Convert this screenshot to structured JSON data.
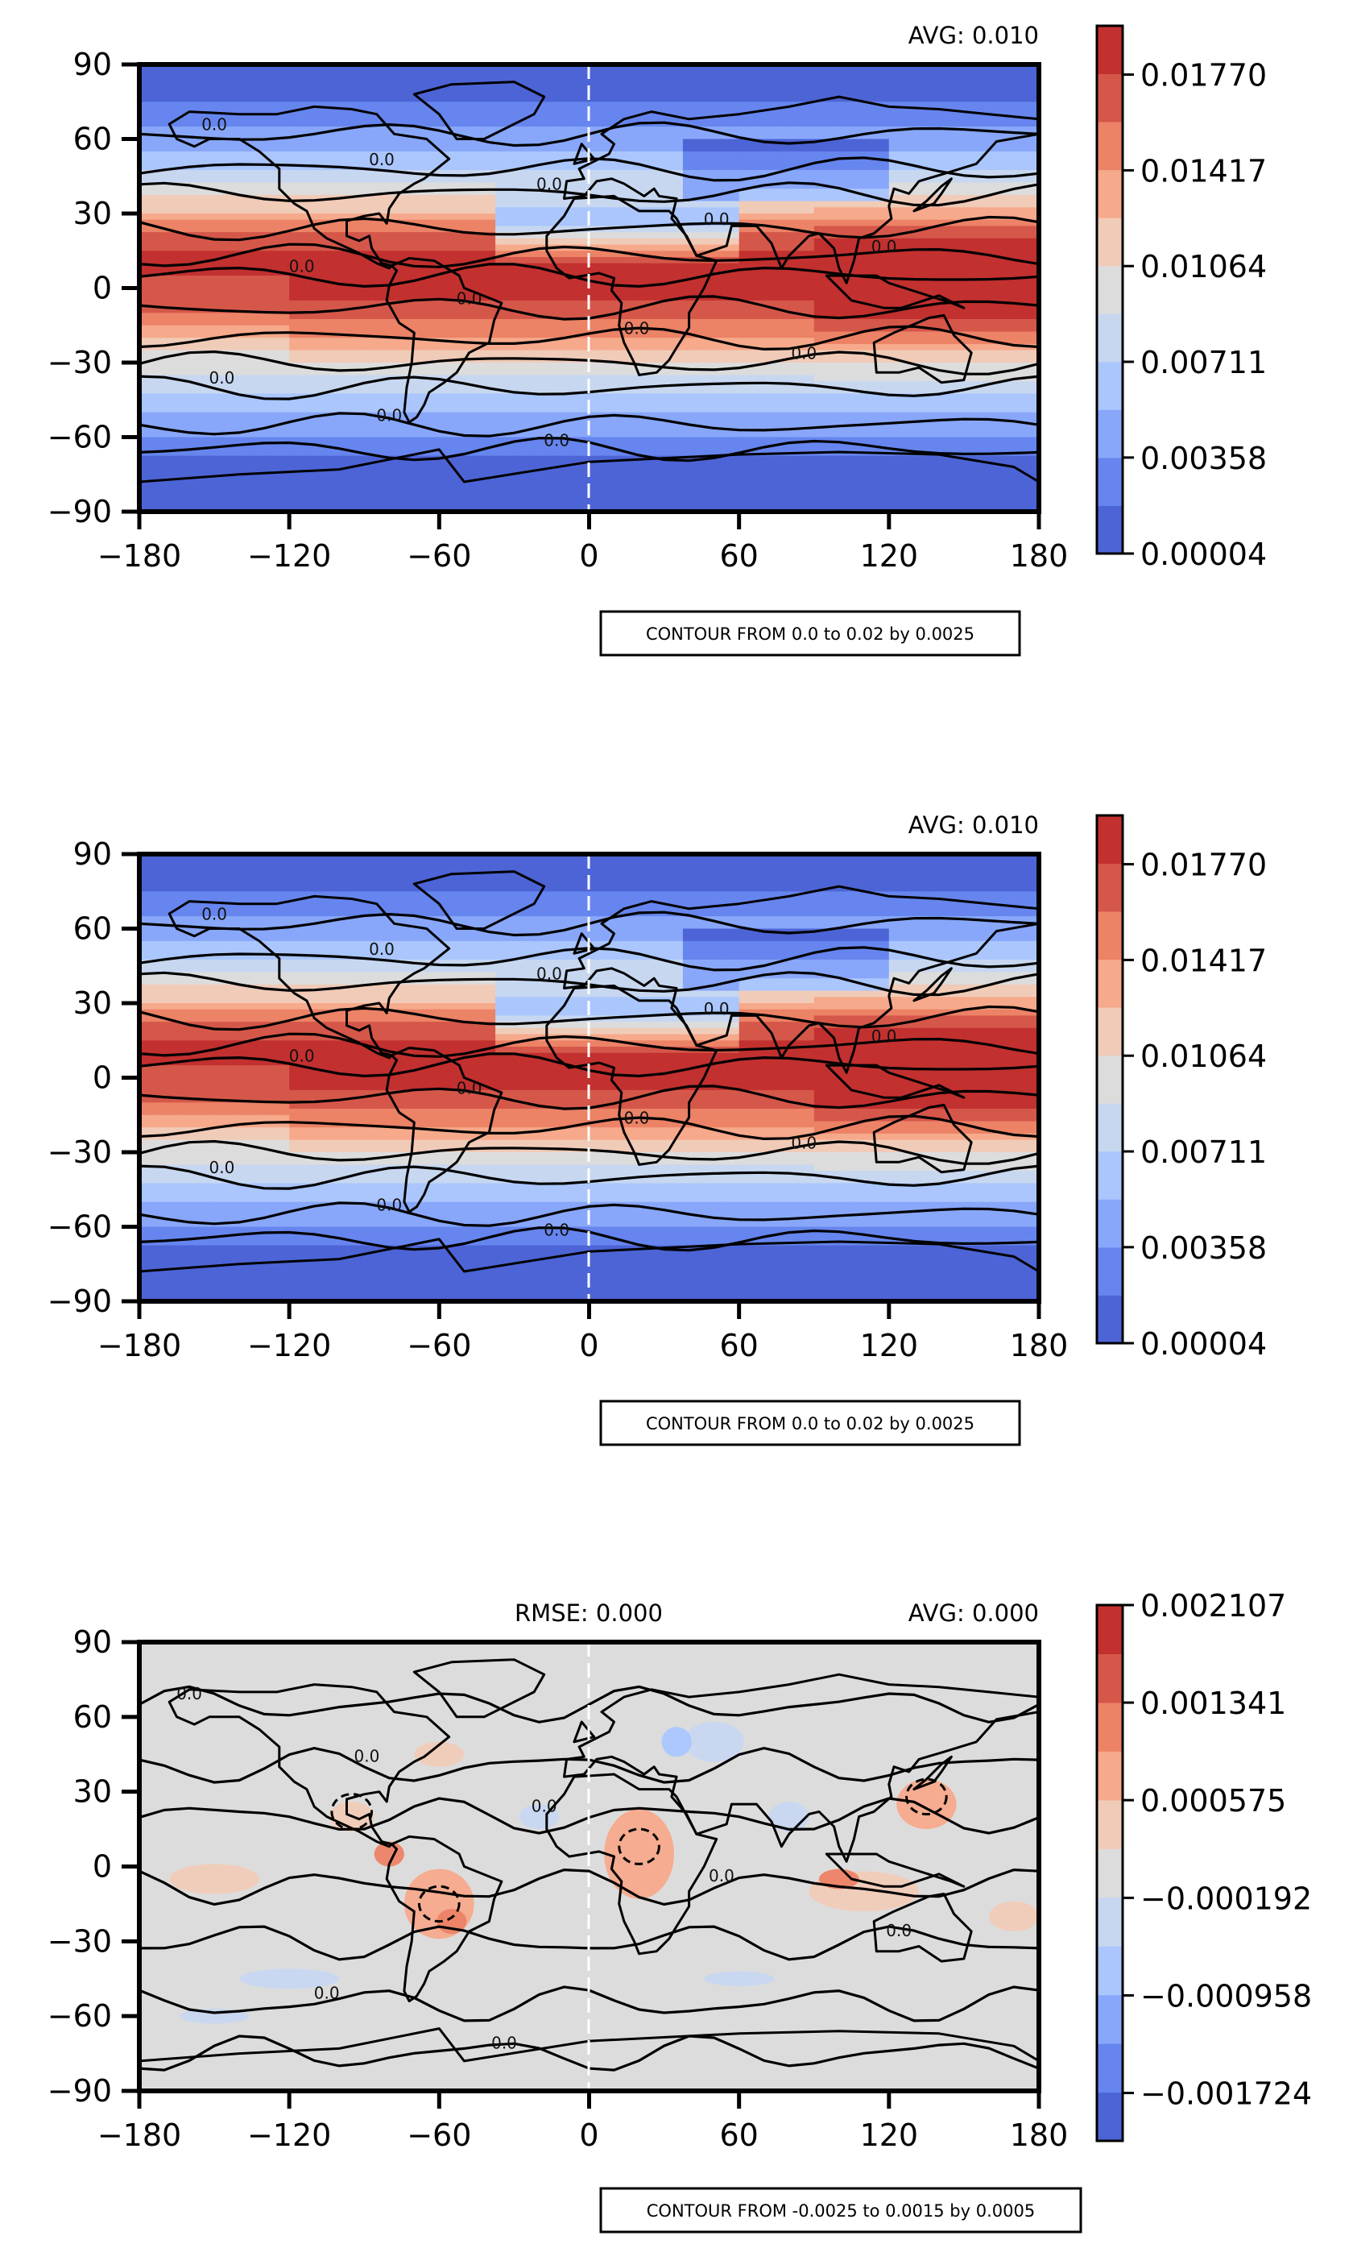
{
  "colors": {
    "cmap": [
      "#4d64d6",
      "#6685ee",
      "#88a7fa",
      "#aac6fd",
      "#c7d7f0",
      "#dddcdc",
      "#f0cbb8",
      "#f6a98b",
      "#ec8266",
      "#d5574a",
      "#c2302f"
    ],
    "contour_line": "#000000",
    "coastline": "#000000",
    "frame": "#000000"
  },
  "chart_data": [
    {
      "type": "heatmap",
      "variant": "filled-contour-world-map",
      "title": "",
      "subtitle_right": "AVG: 0.010",
      "subtitle_left": "",
      "xlim": [
        -180,
        180
      ],
      "ylim": [
        -90,
        90
      ],
      "xticks": [
        "−180",
        "−120",
        "−60",
        "0",
        "60",
        "120",
        "180"
      ],
      "yticks": [
        "90",
        "60",
        "30",
        "0",
        "−30",
        "−60",
        "−90"
      ],
      "colorbar": {
        "range": [
          4e-05,
          0.0195
        ],
        "tick_labels": [
          "0.00004",
          "0.00358",
          "0.00711",
          "0.01064",
          "0.01417",
          "0.01770"
        ],
        "levels": 11
      },
      "contour_note": "CONTOUR FROM 0.0 to 0.02 by 0.0025",
      "contour_label": "0.0",
      "zonal_profile": {
        "lat": [
          90,
          75,
          60,
          50,
          40,
          30,
          20,
          10,
          0,
          -10,
          -20,
          -30,
          -40,
          -50,
          -60,
          -70,
          -80,
          -90
        ],
        "value": [
          0.0004,
          0.0018,
          0.0045,
          0.0066,
          0.0094,
          0.0128,
          0.0168,
          0.0185,
          0.0186,
          0.017,
          0.0138,
          0.0104,
          0.0076,
          0.0054,
          0.0035,
          0.0014,
          0.0004,
          0.0002
        ]
      }
    },
    {
      "type": "heatmap",
      "variant": "filled-contour-world-map",
      "title": "",
      "subtitle_right": "AVG: 0.010",
      "subtitle_left": "",
      "xlim": [
        -180,
        180
      ],
      "ylim": [
        -90,
        90
      ],
      "xticks": [
        "−180",
        "−120",
        "−60",
        "0",
        "60",
        "120",
        "180"
      ],
      "yticks": [
        "90",
        "60",
        "30",
        "0",
        "−30",
        "−60",
        "−90"
      ],
      "colorbar": {
        "range": [
          4e-05,
          0.0195
        ],
        "tick_labels": [
          "0.00004",
          "0.00358",
          "0.00711",
          "0.01064",
          "0.01417",
          "0.01770"
        ],
        "levels": 11
      },
      "contour_note": "CONTOUR FROM 0.0 to 0.02 by 0.0025",
      "contour_label": "0.0",
      "zonal_profile": {
        "lat": [
          90,
          75,
          60,
          50,
          40,
          30,
          20,
          10,
          0,
          -10,
          -20,
          -30,
          -40,
          -50,
          -60,
          -70,
          -80,
          -90
        ],
        "value": [
          0.0004,
          0.0018,
          0.0045,
          0.0066,
          0.0094,
          0.0128,
          0.0168,
          0.0185,
          0.0186,
          0.017,
          0.0138,
          0.0104,
          0.0076,
          0.0054,
          0.0035,
          0.0014,
          0.0004,
          0.0002
        ]
      }
    },
    {
      "type": "heatmap",
      "variant": "filled-contour-world-map-difference",
      "title": "",
      "subtitle_right": "AVG: 0.000",
      "subtitle_left": "RMSE: 0.000",
      "xlim": [
        -180,
        180
      ],
      "ylim": [
        -90,
        90
      ],
      "xticks": [
        "−180",
        "−120",
        "−60",
        "0",
        "60",
        "120",
        "180"
      ],
      "yticks": [
        "90",
        "60",
        "30",
        "0",
        "−30",
        "−60",
        "−90"
      ],
      "colorbar": {
        "range": [
          -0.0021,
          0.002107
        ],
        "tick_labels": [
          "−0.001724",
          "−0.000958",
          "−0.000192",
          "0.000575",
          "0.001341",
          "0.002107"
        ],
        "levels": 11
      },
      "contour_note": "CONTOUR FROM -0.0025 to 0.0015 by 0.0005",
      "contour_label": "0.0"
    }
  ]
}
